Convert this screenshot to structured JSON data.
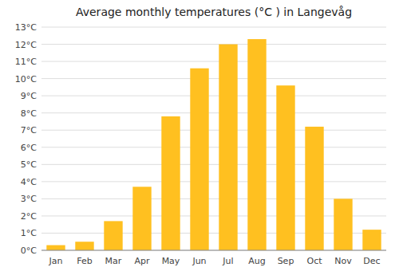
{
  "chart_data": {
    "type": "bar",
    "title": "Average monthly temperatures (°C ) in Langevåg",
    "categories": [
      "Jan",
      "Feb",
      "Mar",
      "Apr",
      "May",
      "Jun",
      "Jul",
      "Aug",
      "Sep",
      "Oct",
      "Nov",
      "Dec"
    ],
    "values": [
      0.3,
      0.5,
      1.7,
      3.7,
      7.8,
      10.6,
      12.0,
      12.3,
      9.6,
      7.2,
      3.0,
      1.2
    ],
    "color": "#FFC020",
    "ylim": [
      0,
      13
    ],
    "yticks": [
      {
        "value": 0,
        "label": "0°C"
      },
      {
        "value": 1,
        "label": "1°C"
      },
      {
        "value": 2,
        "label": "2°C"
      },
      {
        "value": 3,
        "label": "3°C"
      },
      {
        "value": 4,
        "label": "4°C"
      },
      {
        "value": 5,
        "label": "5°C"
      },
      {
        "value": 6,
        "label": "6°C"
      },
      {
        "value": 7,
        "label": "7°C"
      },
      {
        "value": 8,
        "label": "8°C"
      },
      {
        "value": 9,
        "label": "9°C"
      },
      {
        "value": 10,
        "label": "10°C"
      },
      {
        "value": 11,
        "label": "11°C"
      },
      {
        "value": 12,
        "label": "12°C"
      },
      {
        "value": 13,
        "label": "13°C"
      }
    ],
    "grid": true
  }
}
